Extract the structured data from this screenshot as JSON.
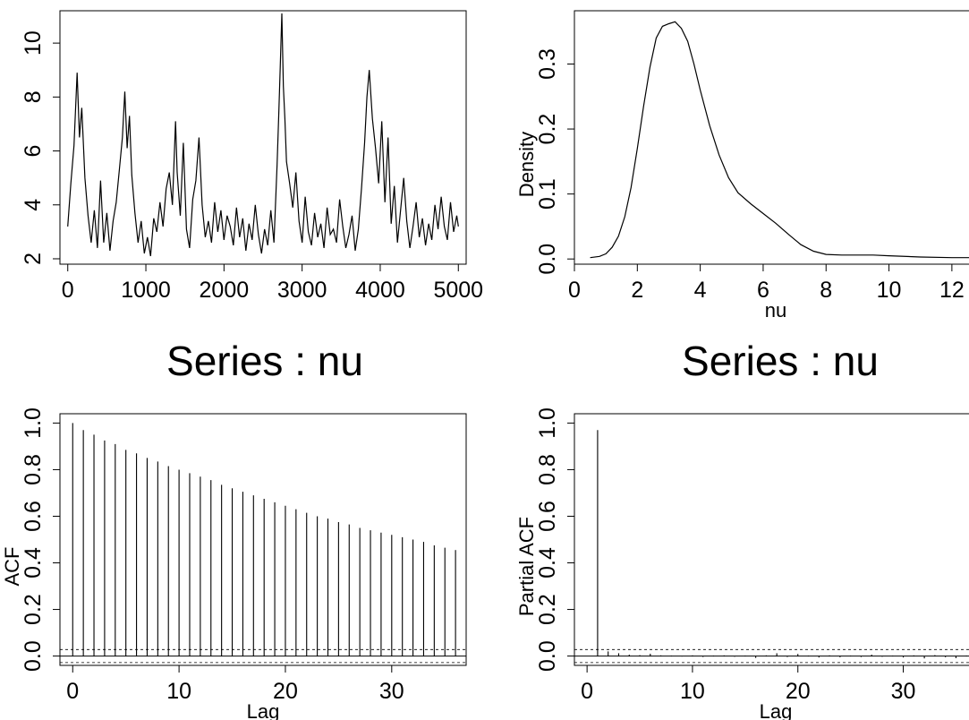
{
  "chart_data": [
    {
      "type": "line",
      "title": "",
      "xlabel": "",
      "ylabel": "",
      "xlim": [
        -100,
        5100
      ],
      "ylim": [
        1.8,
        11.2
      ],
      "xticks": [
        "0",
        "1000",
        "2000",
        "3000",
        "4000",
        "5000"
      ],
      "yticks": [
        "2",
        "4",
        "6",
        "8",
        "10"
      ],
      "grid": false,
      "series": [
        {
          "x": [
            0,
            40,
            80,
            120,
            150,
            180,
            220,
            260,
            300,
            340,
            380,
            420,
            460,
            500,
            540,
            580,
            620,
            660,
            700,
            730,
            760,
            790,
            820,
            860,
            900,
            940,
            980,
            1020,
            1060,
            1100,
            1140,
            1180,
            1220,
            1260,
            1300,
            1340,
            1380,
            1400,
            1440,
            1480,
            1520,
            1560,
            1600,
            1640,
            1680,
            1720,
            1760,
            1800,
            1840,
            1880,
            1920,
            1960,
            2000,
            2040,
            2080,
            2120,
            2160,
            2200,
            2240,
            2280,
            2320,
            2360,
            2400,
            2440,
            2480,
            2520,
            2560,
            2600,
            2640,
            2680,
            2700,
            2720,
            2740,
            2760,
            2780,
            2800,
            2840,
            2880,
            2920,
            2960,
            3000,
            3040,
            3080,
            3120,
            3160,
            3200,
            3240,
            3280,
            3320,
            3360,
            3400,
            3440,
            3480,
            3520,
            3560,
            3600,
            3640,
            3680,
            3720,
            3760,
            3800,
            3830,
            3860,
            3900,
            3940,
            3980,
            4020,
            4060,
            4100,
            4140,
            4180,
            4220,
            4260,
            4300,
            4340,
            4380,
            4420,
            4460,
            4500,
            4540,
            4580,
            4620,
            4660,
            4700,
            4740,
            4780,
            4820,
            4860,
            4900,
            4940,
            4980,
            5000
          ],
          "y": [
            3.2,
            4.8,
            6.2,
            8.9,
            6.5,
            7.6,
            5.0,
            3.6,
            2.6,
            3.8,
            2.4,
            4.9,
            2.6,
            3.7,
            2.3,
            3.4,
            4.1,
            5.3,
            6.5,
            8.2,
            6.1,
            7.3,
            5.1,
            3.7,
            2.6,
            3.4,
            2.2,
            2.8,
            2.1,
            3.5,
            3.0,
            4.1,
            3.2,
            4.6,
            5.2,
            4.0,
            7.1,
            5.2,
            3.6,
            6.3,
            3.1,
            2.4,
            4.2,
            4.9,
            6.5,
            4.0,
            2.8,
            3.4,
            2.6,
            4.1,
            3.0,
            3.8,
            2.7,
            3.6,
            3.2,
            2.5,
            3.9,
            2.8,
            3.5,
            2.3,
            3.3,
            2.7,
            4.0,
            2.9,
            2.2,
            3.1,
            2.5,
            3.8,
            2.6,
            5.5,
            7.3,
            9.1,
            11.1,
            8.4,
            7.2,
            5.6,
            4.8,
            3.9,
            5.2,
            3.4,
            2.6,
            4.3,
            3.0,
            2.5,
            3.7,
            2.8,
            3.3,
            2.4,
            3.9,
            2.9,
            3.1,
            2.6,
            4.2,
            3.2,
            2.4,
            2.9,
            3.6,
            2.3,
            3.1,
            4.6,
            6.3,
            8.0,
            9.0,
            7.2,
            6.1,
            4.8,
            7.1,
            4.1,
            6.5,
            3.3,
            4.7,
            2.6,
            3.8,
            5.0,
            3.4,
            2.4,
            3.2,
            4.1,
            2.8,
            3.5,
            2.5,
            3.3,
            2.7,
            4.0,
            3.1,
            4.3,
            3.2,
            2.7,
            4.1,
            3.0,
            3.6,
            3.2
          ]
        }
      ]
    },
    {
      "type": "line",
      "title": "",
      "xlabel": "nu",
      "ylabel": "Density",
      "xlim": [
        0,
        12.8
      ],
      "ylim": [
        -0.008,
        0.382
      ],
      "xticks": [
        "0",
        "2",
        "4",
        "6",
        "8",
        "10",
        "12"
      ],
      "yticks": [
        "0.0",
        "0.1",
        "0.2",
        "0.3"
      ],
      "grid": false,
      "series": [
        {
          "x": [
            0.5,
            0.8,
            1.0,
            1.2,
            1.4,
            1.6,
            1.8,
            2.0,
            2.2,
            2.4,
            2.6,
            2.8,
            3.0,
            3.2,
            3.4,
            3.6,
            3.8,
            4.0,
            4.3,
            4.6,
            4.9,
            5.2,
            5.6,
            6.0,
            6.4,
            6.8,
            7.2,
            7.6,
            8.0,
            8.5,
            9.0,
            9.5,
            10.0,
            11.0,
            12.0,
            12.8
          ],
          "y": [
            0.002,
            0.004,
            0.008,
            0.018,
            0.035,
            0.065,
            0.11,
            0.17,
            0.235,
            0.295,
            0.34,
            0.358,
            0.362,
            0.365,
            0.355,
            0.335,
            0.3,
            0.26,
            0.205,
            0.16,
            0.125,
            0.102,
            0.085,
            0.07,
            0.055,
            0.038,
            0.022,
            0.012,
            0.007,
            0.006,
            0.006,
            0.006,
            0.005,
            0.003,
            0.002,
            0.002
          ]
        }
      ]
    },
    {
      "type": "bar",
      "title": "Series : nu",
      "xlabel": "Lag",
      "ylabel": "ACF",
      "xlim": [
        -1.2,
        37
      ],
      "ylim": [
        -0.04,
        1.04
      ],
      "xticks": [
        "0",
        "10",
        "20",
        "30"
      ],
      "yticks": [
        "0.0",
        "0.2",
        "0.4",
        "0.6",
        "0.8",
        "1.0"
      ],
      "confidence_band": [
        -0.028,
        0.028
      ],
      "lags": [
        0,
        1,
        2,
        3,
        4,
        5,
        6,
        7,
        8,
        9,
        10,
        11,
        12,
        13,
        14,
        15,
        16,
        17,
        18,
        19,
        20,
        21,
        22,
        23,
        24,
        25,
        26,
        27,
        28,
        29,
        30,
        31,
        32,
        33,
        34,
        35,
        36
      ],
      "values": [
        1.0,
        0.97,
        0.95,
        0.925,
        0.91,
        0.885,
        0.87,
        0.85,
        0.835,
        0.815,
        0.8,
        0.785,
        0.77,
        0.755,
        0.735,
        0.72,
        0.705,
        0.69,
        0.675,
        0.66,
        0.645,
        0.63,
        0.615,
        0.6,
        0.59,
        0.575,
        0.565,
        0.55,
        0.54,
        0.53,
        0.52,
        0.51,
        0.5,
        0.49,
        0.475,
        0.465,
        0.455
      ]
    },
    {
      "type": "bar",
      "title": "Series : nu",
      "xlabel": "Lag",
      "ylabel": "Partial ACF",
      "xlim": [
        -1.2,
        37
      ],
      "ylim": [
        -0.04,
        1.04
      ],
      "xticks": [
        "0",
        "10",
        "20",
        "30"
      ],
      "yticks": [
        "0.0",
        "0.2",
        "0.4",
        "0.6",
        "0.8",
        "1.0"
      ],
      "confidence_band": [
        -0.028,
        0.028
      ],
      "lags": [
        1,
        2,
        3,
        4,
        5,
        6,
        7,
        8,
        9,
        10,
        11,
        12,
        13,
        14,
        15,
        16,
        17,
        18,
        19,
        20,
        21,
        22,
        23,
        24,
        25,
        26,
        27,
        28,
        29,
        30,
        31,
        32,
        33,
        34,
        35,
        36
      ],
      "values": [
        0.97,
        0.02,
        0.012,
        0.006,
        0.004,
        0.01,
        0.003,
        0.002,
        -0.002,
        0.003,
        -0.004,
        0.002,
        0.003,
        -0.003,
        0.002,
        -0.008,
        0.003,
        0.012,
        -0.004,
        0.009,
        0.002,
        -0.006,
        0.003,
        -0.005,
        0.002,
        -0.004,
        0.006,
        -0.003,
        0.002,
        -0.006,
        0.003,
        -0.01,
        0.004,
        -0.005,
        -0.009,
        0.002
      ]
    }
  ]
}
